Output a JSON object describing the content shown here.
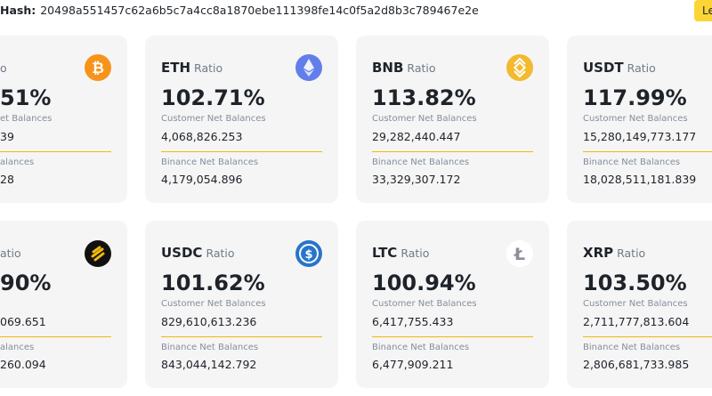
{
  "header": {
    "hash_label": "Hash:",
    "hash": "20498a551457c62a6b5c7a4cc8a1870ebe111398fe14c0f5a2d8b3c789467e2e",
    "button": "Le"
  },
  "cards": [
    {
      "ratio_label": "o",
      "ratio": "51%",
      "customer_label": "et Balances",
      "customer": "39",
      "binance_label": "alances",
      "binance": "28"
    },
    {
      "symbol": "ETH",
      "ratio_label": "Ratio",
      "ratio": "102.71%",
      "customer_label": "Customer Net Balances",
      "customer": "4,068,826.253",
      "binance_label": "Binance Net Balances",
      "binance": "4,179,054.896"
    },
    {
      "symbol": "BNB",
      "ratio_label": "Ratio",
      "ratio": "113.82%",
      "customer_label": "Customer Net Balances",
      "customer": "29,282,440.447",
      "binance_label": "Binance Net Balances",
      "binance": "33,329,307.172"
    },
    {
      "symbol": "USDT",
      "ratio_label": "Ratio",
      "ratio": "117.99%",
      "customer_label": "Customer Net Balances",
      "customer": "15,280,149,773.177",
      "binance_label": "Binance Net Balances",
      "binance": "18,028,511,181.839"
    },
    {
      "ratio_label": "atio",
      "ratio": "90%",
      "customer": "069.651",
      "binance_label": "alances",
      "binance": "260.094"
    },
    {
      "symbol": "USDC",
      "ratio_label": "Ratio",
      "ratio": "101.62%",
      "customer_label": "Customer Net Balances",
      "customer": "829,610,613.236",
      "binance_label": "Binance Net Balances",
      "binance": "843,044,142.792"
    },
    {
      "symbol": "LTC",
      "ratio_label": "Ratio",
      "ratio": "100.94%",
      "customer_label": "Customer Net Balances",
      "customer": "6,417,755.433",
      "binance_label": "Binance Net Balances",
      "binance": "6,477,909.211"
    },
    {
      "symbol": "XRP",
      "ratio_label": "Ratio",
      "ratio": "103.50%",
      "customer_label": "Customer Net Balances",
      "customer": "2,711,777,813.604",
      "binance_label": "Binance Net Balances",
      "binance": "2,806,681,733.985"
    }
  ]
}
